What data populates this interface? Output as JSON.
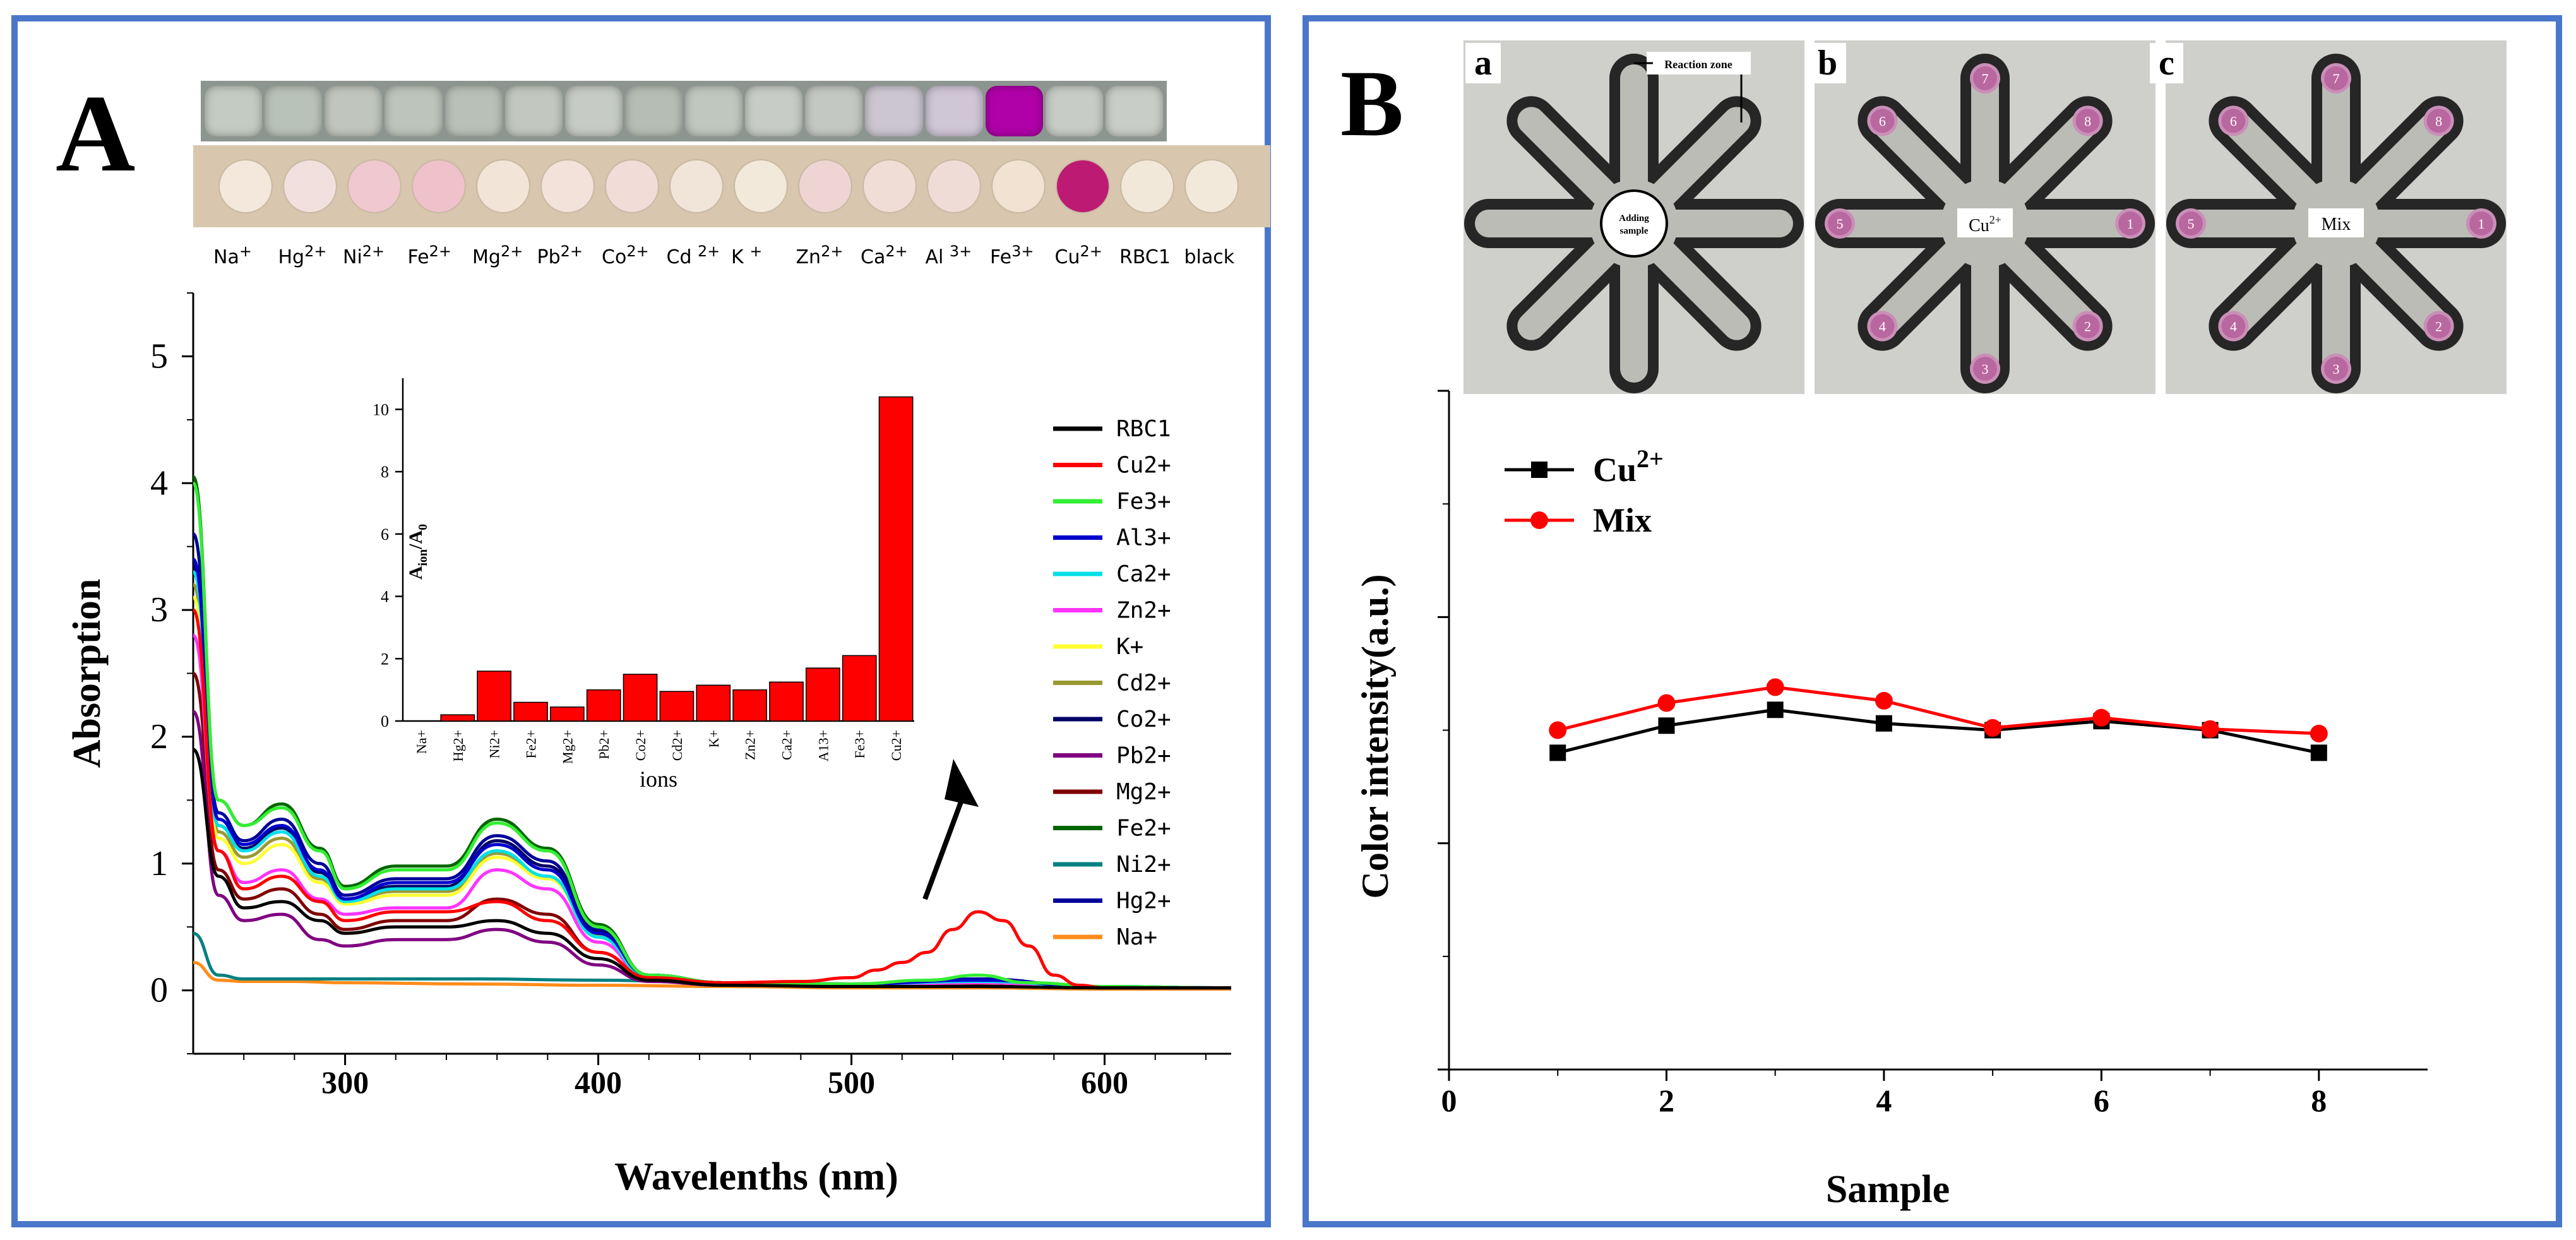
{
  "panel_a": {
    "letter": "A",
    "ion_strip_labels": [
      {
        "name": "Na",
        "sup": "+"
      },
      {
        "name": "Hg",
        "sup": "2+"
      },
      {
        "name": "Ni",
        "sup": "2+"
      },
      {
        "name": "Fe",
        "sup": "2+"
      },
      {
        "name": "Mg",
        "sup": "2+"
      },
      {
        "name": "Pb",
        "sup": "2+"
      },
      {
        "name": "Co",
        "sup": "2+"
      },
      {
        "name": "Cd ",
        "sup": "2+"
      },
      {
        "name": "K ",
        "sup": "+"
      },
      {
        "name": "Zn",
        "sup": "2+"
      },
      {
        "name": "Ca",
        "sup": "2+"
      },
      {
        "name": "Al ",
        "sup": "3+"
      },
      {
        "name": "Fe",
        "sup": "3+"
      },
      {
        "name": "Cu",
        "sup": "2+"
      },
      {
        "name": "RBC1",
        "sup": ""
      },
      {
        "name": "black",
        "sup": ""
      }
    ],
    "vial_colors": [
      "#c3cbc2",
      "#b9c2b9",
      "#c0c6bd",
      "#bcc4bb",
      "#b8c0b7",
      "#c2c8c0",
      "#c6cbc5",
      "#b5bdb4",
      "#c0c7bf",
      "#c7ccc6",
      "#c4c8c3",
      "#cbc6d0",
      "#cfc6d6",
      "#b000a8",
      "#c8ccc6",
      "#c9cdc7"
    ],
    "disk_colors": [
      "#f4e8dc",
      "#f1e0de",
      "#f0c8cf",
      "#efc2cb",
      "#f2e5d8",
      "#f3e2da",
      "#f1dcd8",
      "#f1e4d8",
      "#f3e9da",
      "#eed5d3",
      "#f0ddd5",
      "#f0dcd6",
      "#f1e2d2",
      "#bd1b73",
      "#f2e8da",
      "#f3e9db"
    ]
  },
  "panel_b": {
    "letter": "B",
    "photo_labels": [
      "a",
      "b",
      "c"
    ],
    "photo_a": {
      "reaction_zone": "Reaction zone",
      "adding_sample_1": "Adding",
      "adding_sample_2": "sample"
    },
    "photo_b_center": {
      "name": "Cu",
      "sup": "2+"
    },
    "photo_c_center": "Mix",
    "zone_numbers": [
      "1",
      "2",
      "3",
      "4",
      "5",
      "6",
      "7",
      "8"
    ]
  },
  "chart_data": [
    {
      "id": "absorption-spectra",
      "type": "line",
      "xlabel": "Wavelenths (nm)",
      "ylabel": "Absorption",
      "xlim": [
        240,
        650
      ],
      "ylim": [
        -0.5,
        5.5
      ],
      "xticks": [
        300,
        400,
        500,
        600
      ],
      "yticks": [
        0,
        1,
        2,
        3,
        4,
        5
      ],
      "series": [
        {
          "name": "RBC1",
          "color": "#000000",
          "x": [
            240,
            250,
            260,
            275,
            290,
            300,
            320,
            340,
            360,
            380,
            400,
            420,
            450,
            500,
            550,
            600,
            650
          ],
          "y": [
            1.9,
            0.9,
            0.65,
            0.7,
            0.55,
            0.45,
            0.5,
            0.5,
            0.55,
            0.45,
            0.25,
            0.08,
            0.04,
            0.03,
            0.03,
            0.02,
            0.02
          ]
        },
        {
          "name": "Cu2+",
          "color": "#ff0000",
          "x": [
            240,
            250,
            260,
            275,
            290,
            300,
            320,
            340,
            360,
            380,
            400,
            420,
            450,
            480,
            500,
            510,
            520,
            530,
            540,
            550,
            560,
            570,
            580,
            590,
            600,
            650
          ],
          "y": [
            3.0,
            1.1,
            0.8,
            0.9,
            0.7,
            0.55,
            0.62,
            0.62,
            0.7,
            0.55,
            0.3,
            0.1,
            0.06,
            0.07,
            0.1,
            0.16,
            0.22,
            0.3,
            0.48,
            0.62,
            0.55,
            0.35,
            0.12,
            0.04,
            0.02,
            0.02
          ]
        },
        {
          "name": "Fe3+",
          "color": "#33ee33",
          "x": [
            240,
            250,
            260,
            275,
            290,
            300,
            320,
            340,
            360,
            380,
            400,
            420,
            450,
            500,
            530,
            550,
            570,
            600,
            650
          ],
          "y": [
            4.0,
            1.5,
            1.3,
            1.44,
            1.1,
            0.8,
            0.95,
            0.95,
            1.32,
            1.1,
            0.5,
            0.12,
            0.06,
            0.05,
            0.08,
            0.12,
            0.06,
            0.03,
            0.02
          ]
        },
        {
          "name": "Al3+",
          "color": "#0000cc",
          "x": [
            240,
            250,
            260,
            275,
            290,
            300,
            320,
            340,
            360,
            380,
            400,
            420,
            450,
            500,
            550,
            600,
            650
          ],
          "y": [
            3.4,
            1.35,
            1.15,
            1.3,
            0.95,
            0.72,
            0.85,
            0.85,
            1.15,
            0.95,
            0.45,
            0.12,
            0.06,
            0.05,
            0.08,
            0.03,
            0.02
          ]
        },
        {
          "name": "Ca2+",
          "color": "#00e0e8",
          "x": [
            240,
            250,
            260,
            275,
            290,
            300,
            320,
            340,
            360,
            380,
            400,
            420,
            450,
            500,
            550,
            600,
            650
          ],
          "y": [
            3.3,
            1.3,
            1.1,
            1.25,
            0.9,
            0.7,
            0.8,
            0.8,
            1.1,
            0.9,
            0.42,
            0.1,
            0.06,
            0.05,
            0.07,
            0.03,
            0.02
          ]
        },
        {
          "name": "Zn2+",
          "color": "#ff33ff",
          "x": [
            240,
            250,
            260,
            275,
            290,
            300,
            320,
            340,
            360,
            380,
            400,
            420,
            450,
            500,
            550,
            600,
            650
          ],
          "y": [
            2.8,
            1.1,
            0.85,
            0.95,
            0.72,
            0.6,
            0.65,
            0.65,
            0.95,
            0.8,
            0.38,
            0.1,
            0.05,
            0.04,
            0.06,
            0.02,
            0.02
          ]
        },
        {
          "name": "K+",
          "color": "#ffff33",
          "x": [
            240,
            250,
            260,
            275,
            290,
            300,
            320,
            340,
            360,
            380,
            400,
            420,
            450,
            500,
            550,
            600,
            650
          ],
          "y": [
            3.1,
            1.2,
            1.0,
            1.15,
            0.85,
            0.68,
            0.75,
            0.75,
            1.05,
            0.88,
            0.42,
            0.1,
            0.06,
            0.05,
            0.06,
            0.02,
            0.02
          ]
        },
        {
          "name": "Cd2+",
          "color": "#999933",
          "x": [
            240,
            250,
            260,
            275,
            290,
            300,
            320,
            340,
            360,
            380,
            400,
            420,
            450,
            500,
            550,
            600,
            650
          ],
          "y": [
            3.2,
            1.25,
            1.05,
            1.2,
            0.88,
            0.7,
            0.78,
            0.78,
            1.08,
            0.9,
            0.43,
            0.11,
            0.06,
            0.05,
            0.06,
            0.02,
            0.02
          ]
        },
        {
          "name": "Co2+",
          "color": "#000066",
          "x": [
            240,
            250,
            260,
            275,
            290,
            300,
            320,
            340,
            360,
            380,
            400,
            420,
            450,
            500,
            550,
            600,
            650
          ],
          "y": [
            3.35,
            1.3,
            1.12,
            1.28,
            0.93,
            0.72,
            0.82,
            0.82,
            1.18,
            0.98,
            0.46,
            0.12,
            0.06,
            0.05,
            0.07,
            0.02,
            0.02
          ]
        },
        {
          "name": "Pb2+",
          "color": "#800080",
          "x": [
            240,
            250,
            260,
            275,
            290,
            300,
            320,
            340,
            360,
            380,
            400,
            420,
            450,
            500,
            550,
            600,
            650
          ],
          "y": [
            2.2,
            0.75,
            0.55,
            0.6,
            0.4,
            0.35,
            0.4,
            0.4,
            0.48,
            0.38,
            0.2,
            0.07,
            0.04,
            0.03,
            0.03,
            0.02,
            0.02
          ]
        },
        {
          "name": "Mg2+",
          "color": "#800000",
          "x": [
            240,
            250,
            260,
            275,
            290,
            300,
            320,
            340,
            360,
            380,
            400,
            420,
            450,
            500,
            550,
            600,
            650
          ],
          "y": [
            2.5,
            0.95,
            0.72,
            0.8,
            0.6,
            0.48,
            0.55,
            0.55,
            0.72,
            0.6,
            0.3,
            0.09,
            0.05,
            0.04,
            0.04,
            0.02,
            0.02
          ]
        },
        {
          "name": "Fe2+",
          "color": "#006600",
          "x": [
            240,
            250,
            260,
            275,
            290,
            300,
            320,
            340,
            360,
            380,
            400,
            420,
            450,
            500,
            550,
            600,
            650
          ],
          "y": [
            4.05,
            1.5,
            1.3,
            1.47,
            1.12,
            0.82,
            0.98,
            0.98,
            1.35,
            1.12,
            0.52,
            0.12,
            0.06,
            0.05,
            0.06,
            0.02,
            0.02
          ]
        },
        {
          "name": "Ni2+",
          "color": "#008080",
          "x": [
            240,
            250,
            260,
            280,
            300,
            350,
            400,
            450,
            500,
            550,
            600,
            650
          ],
          "y": [
            0.45,
            0.12,
            0.09,
            0.09,
            0.09,
            0.09,
            0.08,
            0.06,
            0.05,
            0.04,
            0.03,
            0.02
          ]
        },
        {
          "name": "Hg2+",
          "color": "#000099",
          "x": [
            240,
            250,
            260,
            275,
            290,
            300,
            320,
            340,
            360,
            380,
            400,
            420,
            450,
            500,
            550,
            600,
            650
          ],
          "y": [
            3.6,
            1.4,
            1.18,
            1.35,
            1.0,
            0.75,
            0.88,
            0.88,
            1.22,
            1.02,
            0.48,
            0.12,
            0.06,
            0.05,
            0.09,
            0.02,
            0.02
          ]
        },
        {
          "name": "Na+",
          "color": "#ff8c1a",
          "x": [
            240,
            250,
            260,
            280,
            300,
            350,
            400,
            450,
            500,
            550,
            600,
            650
          ],
          "y": [
            0.22,
            0.08,
            0.07,
            0.07,
            0.06,
            0.05,
            0.04,
            0.03,
            0.02,
            0.02,
            0.01,
            0.01
          ]
        }
      ]
    },
    {
      "id": "inset-ratio-bars",
      "type": "bar",
      "xlabel": "ions",
      "ylabel_main": "A",
      "ylabel_sub1": "ion",
      "ylabel_mid": "/A",
      "ylabel_sub2": "0",
      "ylim": [
        0,
        11
      ],
      "yticks": [
        0,
        2,
        4,
        6,
        8,
        10
      ],
      "categories": [
        "Na+",
        "Hg2+",
        "Ni2+",
        "Fe2+",
        "Mg2+",
        "Pb2+",
        "Co2+",
        "Cd2+",
        "K+",
        "Zn2+",
        "Ca2+",
        "A13+",
        "Fe3+",
        "Cu2+"
      ],
      "values": [
        0.0,
        0.2,
        1.6,
        0.6,
        0.45,
        1.0,
        1.5,
        0.95,
        1.15,
        1.0,
        1.25,
        1.7,
        2.1,
        10.4
      ],
      "color": "#ff0000"
    },
    {
      "id": "color-intensity",
      "type": "line",
      "xlabel": "Sample",
      "ylabel": "Color intensity(a.u.)",
      "xlim": [
        0,
        9
      ],
      "ylim": [
        0,
        60
      ],
      "xticks": [
        0,
        2,
        4,
        6,
        8
      ],
      "series": [
        {
          "name": "Cu",
          "sup": "2+",
          "color": "#000000",
          "marker": "square",
          "x": [
            1,
            2,
            3,
            4,
            5,
            6,
            7,
            8
          ],
          "y": [
            28,
            30.4,
            31.8,
            30.6,
            30.0,
            30.8,
            30.0,
            28.0
          ]
        },
        {
          "name": "Mix",
          "sup": "",
          "color": "#ff0000",
          "marker": "circle",
          "x": [
            1,
            2,
            3,
            4,
            5,
            6,
            7,
            8
          ],
          "y": [
            30.0,
            32.4,
            33.8,
            32.6,
            30.2,
            31.1,
            30.1,
            29.7
          ]
        }
      ]
    }
  ]
}
